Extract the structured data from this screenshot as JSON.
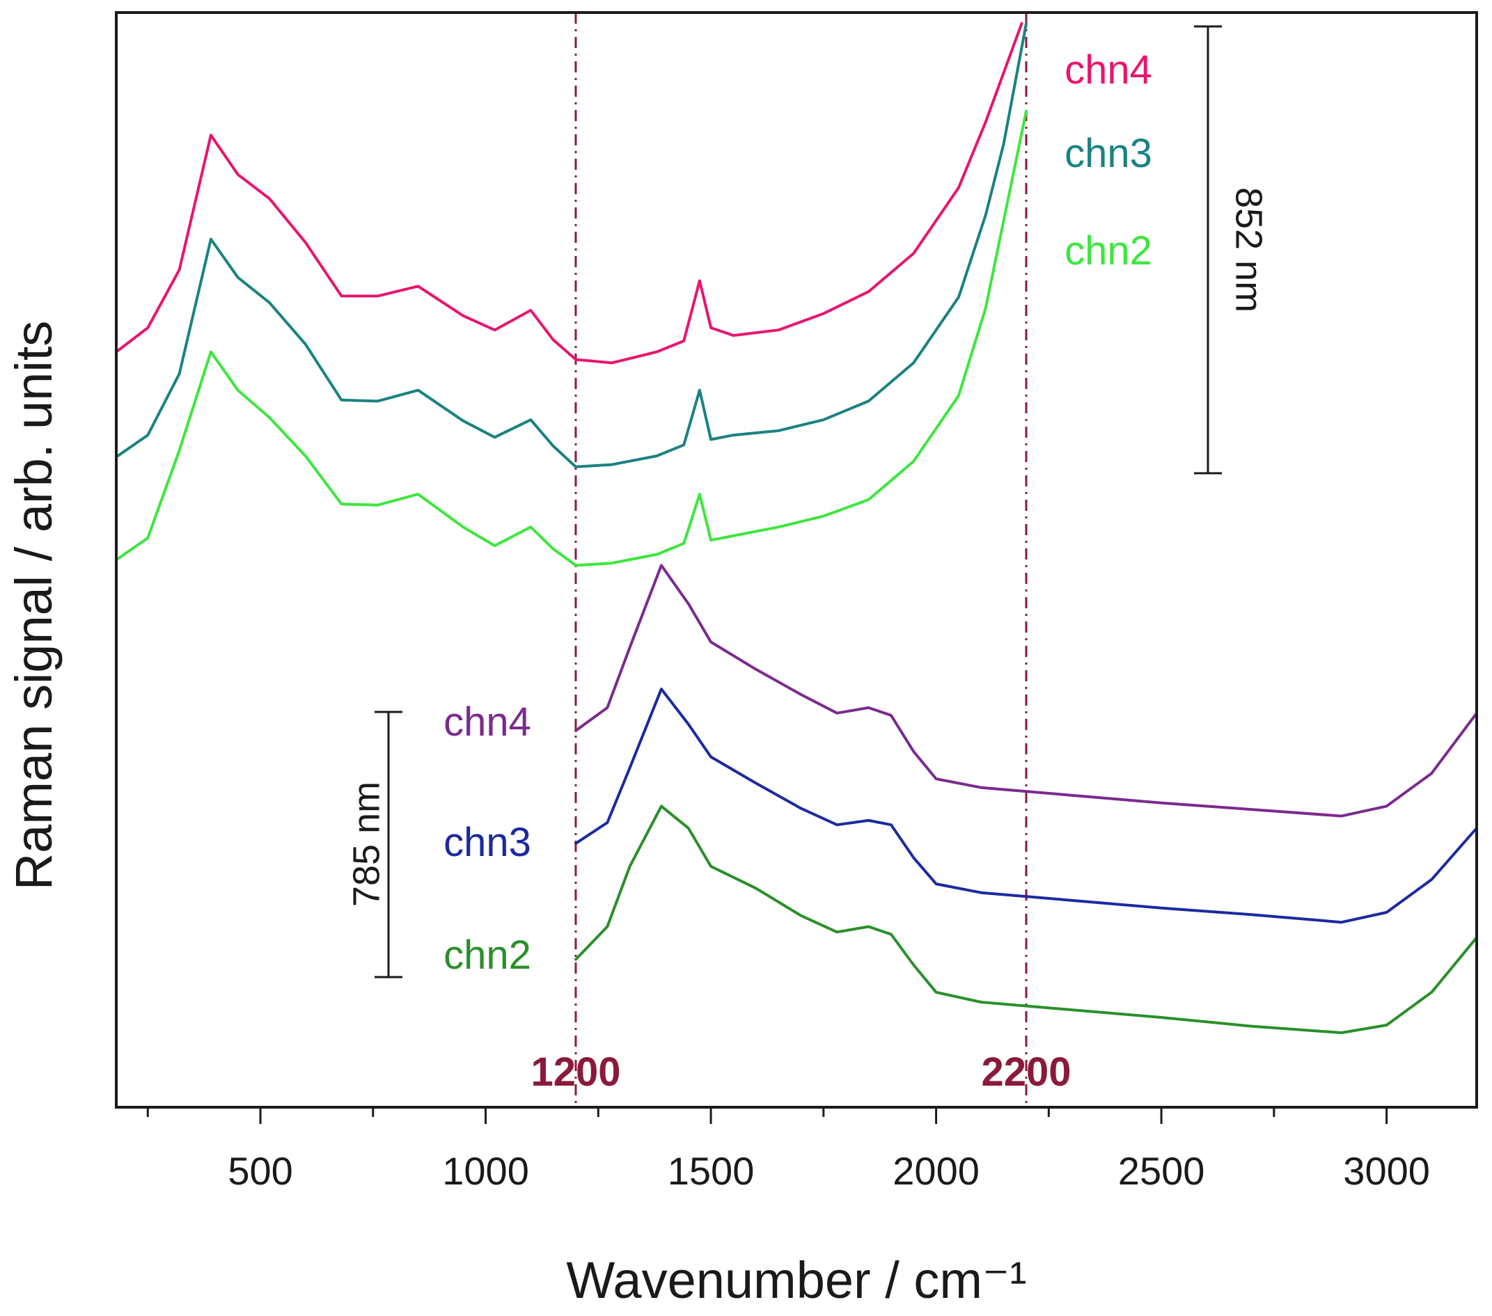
{
  "chart_data": {
    "type": "line",
    "title": "",
    "xlabel": "Wavenumber / cm⁻¹",
    "ylabel": "Raman signal / arb. units",
    "xlim": [
      180,
      3200
    ],
    "ylim": [
      0,
      100
    ],
    "x_ticks": [
      500,
      1000,
      1500,
      2000,
      2500,
      3000
    ],
    "x_tick_labels": [
      "500",
      "1000",
      "1500",
      "2000",
      "2500",
      "3000"
    ],
    "grid": false,
    "reference_lines": [
      {
        "x": 1200,
        "label": "1200",
        "color": "#8b1a3a"
      },
      {
        "x": 2200,
        "label": "2200",
        "color": "#8b1a3a"
      }
    ],
    "scale_bars": [
      {
        "label": "852 nm",
        "group": "852 nm"
      },
      {
        "label": "785 nm",
        "group": "785 nm"
      }
    ],
    "series": [
      {
        "name": "chn4",
        "group": "852 nm",
        "color": "#e8156e",
        "x": [
          180,
          250,
          320,
          390,
          450,
          520,
          600,
          680,
          760,
          850,
          950,
          1020,
          1100,
          1150,
          1200,
          1280,
          1380,
          1440,
          1475,
          1500,
          1550,
          1650,
          1750,
          1850,
          1950,
          2050,
          2110,
          2150,
          2190
        ],
        "y": [
          69.0,
          71.2,
          76.5,
          88.8,
          85.2,
          83.0,
          79.0,
          74.1,
          74.1,
          75.0,
          72.3,
          71.0,
          72.8,
          70.1,
          68.3,
          68.0,
          69.0,
          70.0,
          75.5,
          71.2,
          70.5,
          71.0,
          72.5,
          74.5,
          78.0,
          84.0,
          90.0,
          94.5,
          99.0
        ]
      },
      {
        "name": "chn3",
        "group": "852 nm",
        "color": "#1a8282",
        "x": [
          180,
          250,
          320,
          390,
          450,
          520,
          600,
          680,
          760,
          850,
          950,
          1020,
          1100,
          1150,
          1200,
          1280,
          1380,
          1440,
          1475,
          1500,
          1550,
          1650,
          1750,
          1850,
          1950,
          2050,
          2110,
          2150,
          2200
        ],
        "y": [
          59.4,
          61.4,
          67.0,
          79.3,
          75.8,
          73.5,
          69.7,
          64.6,
          64.5,
          65.5,
          62.7,
          61.2,
          62.8,
          60.4,
          58.5,
          58.7,
          59.5,
          60.5,
          65.5,
          61.0,
          61.4,
          61.8,
          62.8,
          64.5,
          68.0,
          74.0,
          81.5,
          88.0,
          99.0
        ]
      },
      {
        "name": "chn2",
        "group": "852 nm",
        "color": "#3ee63e",
        "x": [
          180,
          250,
          320,
          390,
          450,
          520,
          600,
          680,
          760,
          850,
          950,
          1020,
          1100,
          1150,
          1200,
          1280,
          1380,
          1440,
          1475,
          1500,
          1550,
          1650,
          1750,
          1850,
          1950,
          2050,
          2110,
          2150,
          2200
        ],
        "y": [
          50.0,
          52.0,
          60.0,
          69.0,
          65.5,
          63.0,
          59.5,
          55.1,
          55.0,
          56.0,
          53.0,
          51.3,
          53.0,
          51.0,
          49.5,
          49.7,
          50.5,
          51.5,
          56.0,
          51.8,
          52.2,
          53.0,
          54.0,
          55.5,
          59.0,
          65.0,
          73.0,
          81.0,
          91.0
        ]
      },
      {
        "name": "chn4",
        "group": "785 nm",
        "color": "#7b2a8f",
        "x": [
          1200,
          1270,
          1320,
          1390,
          1450,
          1500,
          1600,
          1700,
          1780,
          1850,
          1900,
          1950,
          2000,
          2100,
          2300,
          2500,
          2700,
          2900,
          3000,
          3100,
          3200
        ],
        "y": [
          34.4,
          36.5,
          42.0,
          49.5,
          46.0,
          42.5,
          40.0,
          37.7,
          36.0,
          36.5,
          35.8,
          32.5,
          30.0,
          29.2,
          28.5,
          27.8,
          27.2,
          26.6,
          27.5,
          30.5,
          36.0
        ]
      },
      {
        "name": "chn3",
        "group": "785 nm",
        "color": "#1c2aa0",
        "x": [
          1200,
          1270,
          1320,
          1390,
          1450,
          1500,
          1600,
          1700,
          1780,
          1850,
          1900,
          1950,
          2000,
          2100,
          2300,
          2500,
          2700,
          2900,
          3000,
          3100,
          3200
        ],
        "y": [
          24.1,
          26.0,
          31.0,
          38.2,
          35.0,
          32.0,
          29.6,
          27.3,
          25.8,
          26.2,
          25.8,
          22.8,
          20.4,
          19.6,
          18.9,
          18.2,
          17.6,
          16.9,
          17.8,
          20.8,
          25.5
        ]
      },
      {
        "name": "chn2",
        "group": "785 nm",
        "color": "#2a8f2a",
        "x": [
          1200,
          1270,
          1320,
          1390,
          1450,
          1500,
          1600,
          1700,
          1780,
          1850,
          1900,
          1950,
          2000,
          2100,
          2300,
          2500,
          2700,
          2900,
          3000,
          3100,
          3200
        ],
        "y": [
          13.5,
          16.5,
          22.0,
          27.5,
          25.5,
          22.0,
          20.0,
          17.5,
          16.0,
          16.5,
          15.8,
          13.0,
          10.5,
          9.6,
          8.9,
          8.2,
          7.4,
          6.8,
          7.5,
          10.5,
          15.5
        ]
      }
    ]
  }
}
